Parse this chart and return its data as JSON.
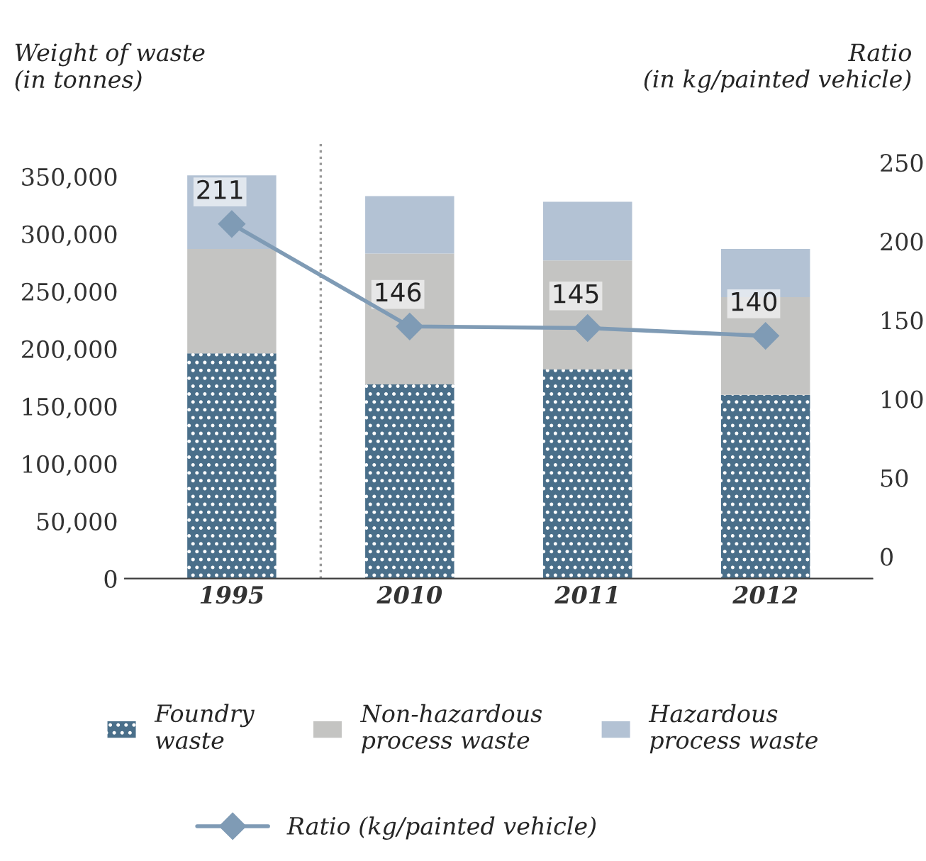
{
  "chart_data": {
    "type": "bar",
    "stacked": true,
    "categories": [
      "1995",
      "2010",
      "2011",
      "2012"
    ],
    "ylabel": "Weight of waste\n(in tonnes)",
    "y2label": "Ratio\n(in kg/painted vehicle)",
    "ylim": [
      0,
      380000
    ],
    "yticks": [
      {
        "value": 0,
        "label": "0"
      },
      {
        "value": 50000,
        "label": "50,000"
      },
      {
        "value": 100000,
        "label": "100,000"
      },
      {
        "value": 150000,
        "label": "150,000"
      },
      {
        "value": 200000,
        "label": "200,000"
      },
      {
        "value": 250000,
        "label": "250,000"
      },
      {
        "value": 300000,
        "label": "300,000"
      },
      {
        "value": 350000,
        "label": "350,000"
      }
    ],
    "y2lim": [
      -14,
      263
    ],
    "y2ticks": [
      0,
      50,
      100,
      150,
      200,
      250
    ],
    "series": [
      {
        "name": "Foundry\nwaste",
        "color": "#4a6f8a",
        "values": [
          196000,
          169000,
          182000,
          160000
        ]
      },
      {
        "name": "Non-hazardous\nprocess waste",
        "color": "#c4c4c2",
        "values": [
          91000,
          114000,
          95000,
          85000
        ]
      },
      {
        "name": "Hazardous\nprocess waste",
        "color": "#b3c2d4",
        "values": [
          64000,
          50000,
          51000,
          42000
        ]
      },
      {
        "name": "Ratio (kg/painted vehicle)",
        "type": "line",
        "axis": "y2",
        "color": "#7f9bb5",
        "marker": "diamond",
        "values": [
          211,
          146,
          145,
          140
        ],
        "value_labels": [
          "211",
          "146",
          "145",
          "140"
        ]
      }
    ],
    "grid": false,
    "legend": "bottom"
  }
}
